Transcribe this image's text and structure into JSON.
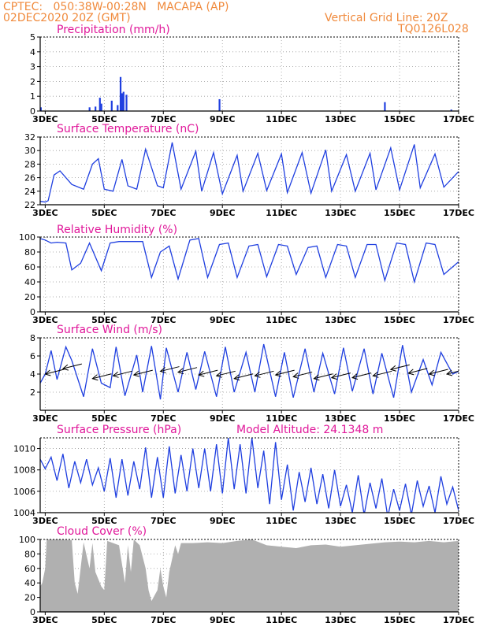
{
  "header": {
    "left_line1": "CPTEC:   050:38W-00:28N   MACAPA (AP)",
    "left_line2": "02DEC2020 20Z (GMT)",
    "right_line1": "Vertical Grid Line: 20Z",
    "right_line2": "TQ0126L028"
  },
  "colors": {
    "header": "#f08a3c",
    "title": "#e0189a",
    "series": "#1f3fe0",
    "cloud": "#b0b0b0"
  },
  "chart_data": [
    {
      "type": "bar",
      "title": "Precipitation (mm/h)",
      "x_days": [
        2.83,
        17
      ],
      "x_ticks": [
        "3DEC",
        "5DEC",
        "7DEC",
        "9DEC",
        "11DEC",
        "13DEC",
        "15DEC",
        "17DEC"
      ],
      "ylim": [
        0,
        5
      ],
      "yticks": [
        0,
        1,
        2,
        3,
        4,
        5
      ],
      "bars": [
        [
          2.45,
          0.5
        ],
        [
          2.5,
          1.3
        ],
        [
          2.55,
          1.6
        ],
        [
          2.6,
          1.2
        ],
        [
          2.65,
          0.5
        ],
        [
          2.85,
          0.25
        ],
        [
          4.5,
          0.25
        ],
        [
          4.7,
          0.3
        ],
        [
          4.85,
          0.9
        ],
        [
          4.9,
          0.5
        ],
        [
          5.25,
          0.7
        ],
        [
          5.45,
          0.4
        ],
        [
          5.55,
          2.3
        ],
        [
          5.6,
          1.2
        ],
        [
          5.65,
          1.3
        ],
        [
          5.75,
          1.1
        ],
        [
          8.9,
          0.8
        ],
        [
          14.5,
          0.6
        ],
        [
          16.75,
          0.1
        ]
      ]
    },
    {
      "type": "line",
      "title": "Surface Temperature (nC)",
      "x_days": [
        2.83,
        17
      ],
      "x_ticks": [
        "3DEC",
        "5DEC",
        "7DEC",
        "9DEC",
        "11DEC",
        "13DEC",
        "15DEC",
        "17DEC"
      ],
      "ylim": [
        22,
        32
      ],
      "yticks": [
        22,
        24,
        26,
        28,
        30,
        32
      ],
      "x": [
        2.83,
        3.0,
        3.1,
        3.3,
        3.5,
        3.9,
        4.3,
        4.6,
        4.8,
        5.0,
        5.3,
        5.6,
        5.8,
        6.1,
        6.4,
        6.8,
        7.0,
        7.3,
        7.6,
        8.1,
        8.3,
        8.7,
        9.0,
        9.5,
        9.7,
        10.2,
        10.5,
        11.0,
        11.2,
        11.7,
        12.0,
        12.5,
        12.7,
        13.2,
        13.5,
        14.0,
        14.2,
        14.7,
        15.0,
        15.5,
        15.7,
        16.2,
        16.5,
        17.0
      ],
      "y": [
        22.5,
        22.4,
        22.6,
        26.4,
        27.0,
        25.0,
        24.3,
        28.0,
        28.8,
        24.3,
        24.0,
        28.7,
        24.8,
        24.3,
        30.2,
        24.8,
        24.5,
        31.2,
        24.3,
        29.9,
        24.0,
        29.7,
        23.6,
        29.3,
        24.0,
        29.6,
        24.1,
        29.5,
        23.8,
        29.7,
        23.7,
        30.1,
        24.0,
        29.4,
        24.0,
        29.6,
        24.2,
        30.4,
        24.2,
        30.9,
        24.5,
        29.5,
        24.6,
        26.9
      ]
    },
    {
      "type": "line",
      "title": "Relative Humidity (%)",
      "x_days": [
        2.83,
        17
      ],
      "x_ticks": [
        "3DEC",
        "5DEC",
        "7DEC",
        "9DEC",
        "11DEC",
        "13DEC",
        "15DEC",
        "17DEC"
      ],
      "ylim": [
        0,
        100
      ],
      "yticks": [
        0,
        20,
        40,
        60,
        80,
        100
      ],
      "x": [
        2.83,
        3.0,
        3.2,
        3.4,
        3.7,
        3.9,
        4.2,
        4.5,
        4.9,
        5.2,
        5.5,
        5.7,
        6.3,
        6.6,
        6.9,
        7.2,
        7.5,
        7.9,
        8.2,
        8.5,
        8.9,
        9.2,
        9.5,
        9.9,
        10.2,
        10.5,
        10.9,
        11.2,
        11.5,
        11.9,
        12.2,
        12.5,
        12.9,
        13.2,
        13.5,
        13.9,
        14.2,
        14.5,
        14.9,
        15.2,
        15.5,
        15.9,
        16.2,
        16.5,
        17.0
      ],
      "y": [
        98,
        96,
        92,
        93,
        92,
        56,
        65,
        92,
        55,
        92,
        94,
        94,
        94,
        46,
        80,
        88,
        44,
        96,
        98,
        46,
        90,
        92,
        46,
        88,
        90,
        47,
        90,
        88,
        50,
        86,
        88,
        46,
        90,
        88,
        46,
        90,
        90,
        42,
        92,
        90,
        40,
        92,
        90,
        50,
        67
      ]
    },
    {
      "type": "line",
      "title": "Surface Wind (m/s)",
      "x_days": [
        2.83,
        17
      ],
      "x_ticks": [
        "3DEC",
        "5DEC",
        "7DEC",
        "9DEC",
        "11DEC",
        "13DEC",
        "15DEC",
        "17DEC"
      ],
      "ylim": [
        0,
        8
      ],
      "yticks": [
        2,
        4,
        6,
        8
      ],
      "x": [
        2.83,
        3.0,
        3.2,
        3.4,
        3.7,
        3.9,
        4.3,
        4.6,
        4.9,
        5.2,
        5.4,
        5.7,
        6.1,
        6.3,
        6.6,
        6.9,
        7.1,
        7.5,
        7.8,
        8.1,
        8.4,
        8.8,
        9.1,
        9.4,
        9.8,
        10.1,
        10.4,
        10.8,
        11.1,
        11.4,
        11.8,
        12.1,
        12.4,
        12.8,
        13.1,
        13.4,
        13.8,
        14.1,
        14.4,
        14.8,
        15.1,
        15.4,
        15.8,
        16.1,
        16.4,
        16.8,
        17.0
      ],
      "y": [
        3.0,
        4.0,
        6.6,
        3.4,
        7.0,
        5.5,
        1.5,
        6.8,
        3.0,
        2.5,
        7.0,
        1.6,
        6.1,
        2.0,
        7.1,
        1.2,
        6.9,
        2.0,
        6.4,
        2.3,
        6.5,
        1.5,
        7.0,
        2.0,
        6.4,
        2.0,
        7.3,
        1.5,
        6.4,
        1.4,
        6.8,
        2.0,
        6.3,
        1.8,
        6.9,
        2.1,
        6.8,
        1.8,
        6.3,
        1.4,
        7.2,
        2.0,
        5.6,
        2.8,
        6.4,
        4.0,
        4.3
      ],
      "arrows": [
        [
          3.0,
          4.0
        ],
        [
          3.6,
          4.6
        ],
        [
          4.6,
          3.5
        ],
        [
          5.3,
          3.8
        ],
        [
          6.0,
          3.9
        ],
        [
          6.9,
          4.3
        ],
        [
          7.5,
          4.2
        ],
        [
          8.2,
          3.9
        ],
        [
          8.8,
          3.8
        ],
        [
          9.4,
          3.5
        ],
        [
          10.1,
          3.8
        ],
        [
          10.8,
          3.9
        ],
        [
          11.4,
          3.7
        ],
        [
          12.1,
          3.5
        ],
        [
          12.7,
          3.6
        ],
        [
          13.4,
          3.6
        ],
        [
          14.1,
          3.8
        ],
        [
          14.7,
          4.5
        ],
        [
          15.3,
          4.1
        ],
        [
          16.0,
          4.0
        ],
        [
          16.6,
          4.0
        ]
      ]
    },
    {
      "type": "line",
      "title": "Surface Pressure (hPa)",
      "annotation": "Model Altitude: 24.1348 m",
      "x_days": [
        2.83,
        17
      ],
      "x_ticks": [
        "3DEC",
        "5DEC",
        "7DEC",
        "9DEC",
        "11DEC",
        "13DEC",
        "15DEC",
        "17DEC"
      ],
      "ylim": [
        1004,
        1011
      ],
      "yticks": [
        1004,
        1006,
        1008,
        1010
      ],
      "x": [
        2.83,
        3.0,
        3.2,
        3.4,
        3.6,
        3.8,
        4.0,
        4.2,
        4.4,
        4.6,
        4.8,
        5.0,
        5.2,
        5.4,
        5.6,
        5.8,
        6.0,
        6.2,
        6.4,
        6.6,
        6.8,
        7.0,
        7.2,
        7.4,
        7.6,
        7.8,
        8.0,
        8.2,
        8.4,
        8.6,
        8.8,
        9.0,
        9.2,
        9.4,
        9.6,
        9.8,
        10.0,
        10.2,
        10.4,
        10.6,
        10.8,
        11.0,
        11.2,
        11.4,
        11.6,
        11.8,
        12.0,
        12.2,
        12.4,
        12.6,
        12.8,
        13.0,
        13.2,
        13.4,
        13.6,
        13.8,
        14.0,
        14.2,
        14.4,
        14.6,
        14.8,
        15.0,
        15.2,
        15.4,
        15.6,
        15.8,
        16.0,
        16.2,
        16.4,
        16.6,
        16.8,
        17.0
      ],
      "y": [
        1009.0,
        1008.1,
        1009.2,
        1007.0,
        1009.5,
        1006.3,
        1008.8,
        1006.8,
        1009.0,
        1006.6,
        1008.2,
        1006.0,
        1009.1,
        1005.4,
        1009.0,
        1005.6,
        1008.8,
        1006.2,
        1010.1,
        1005.4,
        1009.2,
        1005.4,
        1010.2,
        1005.8,
        1009.4,
        1006.0,
        1010.0,
        1006.3,
        1010.0,
        1006.0,
        1010.4,
        1005.8,
        1011.0,
        1006.2,
        1010.4,
        1005.8,
        1011.0,
        1006.3,
        1009.8,
        1004.8,
        1010.6,
        1005.2,
        1008.5,
        1004.2,
        1007.8,
        1005.0,
        1008.2,
        1004.8,
        1007.6,
        1004.4,
        1008.0,
        1004.6,
        1006.6,
        1004.0,
        1007.5,
        1003.8,
        1006.8,
        1004.4,
        1007.2,
        1003.6,
        1006.2,
        1004.2,
        1006.7,
        1003.8,
        1007.0,
        1004.6,
        1006.5,
        1004.0,
        1007.4,
        1004.8,
        1006.4,
        1004.2
      ]
    },
    {
      "type": "area",
      "title": "Cloud Cover (%)",
      "x_days": [
        2.83,
        17
      ],
      "x_ticks": [
        "3DEC",
        "5DEC",
        "7DEC",
        "9DEC",
        "11DEC",
        "13DEC",
        "15DEC",
        "17DEC"
      ],
      "ylim": [
        0,
        100
      ],
      "yticks": [
        0,
        20,
        40,
        60,
        80,
        100
      ],
      "x": [
        2.83,
        2.9,
        3.0,
        3.05,
        3.1,
        3.5,
        3.9,
        4.0,
        4.1,
        4.3,
        4.5,
        4.6,
        4.7,
        4.9,
        5.0,
        5.1,
        5.3,
        5.5,
        5.7,
        5.8,
        5.9,
        6.0,
        6.2,
        6.4,
        6.5,
        6.6,
        6.8,
        6.9,
        7.0,
        7.1,
        7.2,
        7.4,
        7.5,
        7.6,
        8.0,
        8.5,
        9.0,
        9.5,
        10.0,
        10.5,
        11.0,
        11.5,
        12.0,
        12.5,
        13.0,
        13.5,
        14.0,
        14.5,
        15.0,
        15.5,
        16.0,
        16.5,
        17.0
      ],
      "y": [
        35,
        40,
        60,
        100,
        100,
        100,
        99,
        40,
        25,
        96,
        60,
        95,
        55,
        35,
        30,
        98,
        95,
        92,
        40,
        92,
        55,
        100,
        92,
        60,
        30,
        15,
        30,
        60,
        35,
        20,
        55,
        92,
        80,
        95,
        95,
        96,
        95,
        98,
        100,
        92,
        90,
        88,
        92,
        93,
        90,
        92,
        94,
        96,
        97,
        96,
        98,
        96,
        98
      ]
    }
  ]
}
